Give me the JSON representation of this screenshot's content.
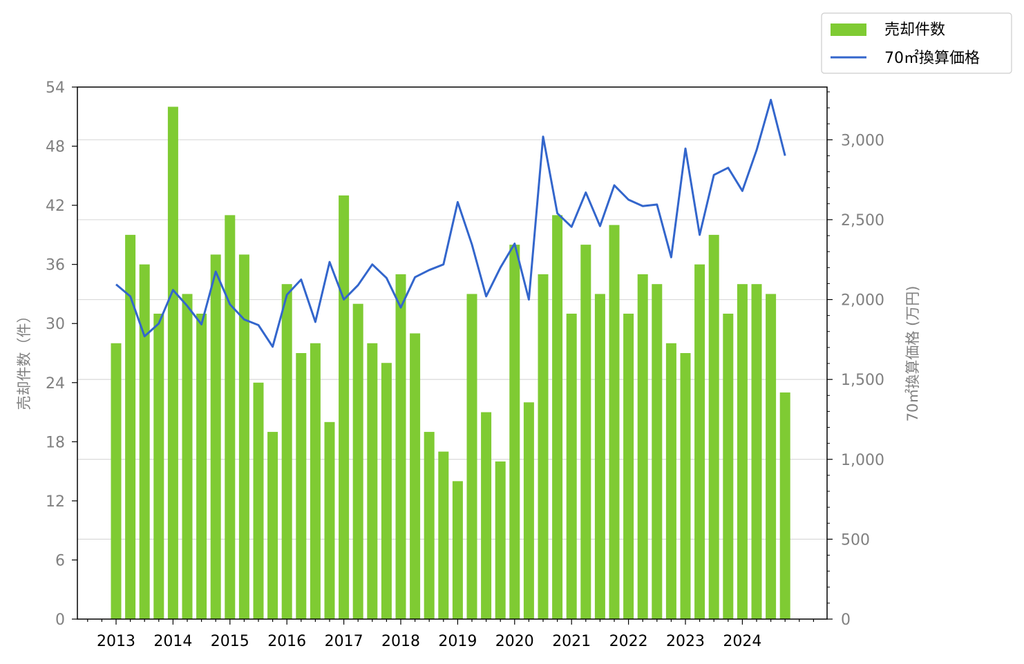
{
  "chart_data": {
    "type": "bar+line",
    "x": [
      "2013-01",
      "2013-04",
      "2013-07",
      "2013-10",
      "2014-01",
      "2014-04",
      "2014-07",
      "2014-10",
      "2015-01",
      "2015-04",
      "2015-07",
      "2015-10",
      "2016-01",
      "2016-04",
      "2016-07",
      "2016-10",
      "2017-01",
      "2017-04",
      "2017-07",
      "2017-10",
      "2018-01",
      "2018-04",
      "2018-07",
      "2018-10",
      "2019-01",
      "2019-04",
      "2019-07",
      "2019-10",
      "2020-01",
      "2020-04",
      "2020-07",
      "2020-10",
      "2021-01",
      "2021-04",
      "2021-07",
      "2021-10",
      "2022-01",
      "2022-04",
      "2022-07",
      "2022-10",
      "2023-01",
      "2023-04",
      "2023-07",
      "2023-10",
      "2024-01",
      "2024-04",
      "2024-07",
      "2024-10"
    ],
    "x_ticks": [
      "2013",
      "2014",
      "2015",
      "2016",
      "2017",
      "2018",
      "2019",
      "2020",
      "2021",
      "2022",
      "2023",
      "2024"
    ],
    "series": [
      {
        "name": "売却件数",
        "type": "bar",
        "axis": "left",
        "color": "#7fcb33",
        "values": [
          28,
          39,
          36,
          31,
          52,
          33,
          31,
          37,
          41,
          37,
          24,
          19,
          34,
          27,
          28,
          20,
          43,
          32,
          28,
          26,
          35,
          29,
          19,
          17,
          14,
          33,
          21,
          16,
          38,
          22,
          35,
          41,
          31,
          38,
          33,
          40,
          31,
          35,
          34,
          28,
          27,
          36,
          39,
          31,
          34,
          34,
          33,
          23
        ]
      },
      {
        "name": "70㎡換算価格",
        "type": "line",
        "axis": "right",
        "color": "#3366cc",
        "values": [
          2095,
          2020,
          1770,
          1850,
          2060,
          1960,
          1845,
          2175,
          1970,
          1875,
          1840,
          1705,
          2030,
          2125,
          1860,
          2235,
          2000,
          2090,
          2220,
          2135,
          1950,
          2140,
          2185,
          2220,
          2610,
          2345,
          2020,
          2200,
          2350,
          2000,
          3020,
          2540,
          2455,
          2670,
          2460,
          2715,
          2625,
          2585,
          2595,
          2265,
          2945,
          2405,
          2780,
          2825,
          2680,
          2935,
          3250,
          2900
        ]
      }
    ],
    "ylabel_left": "売却件数（件）",
    "ylabel_right": "70㎡換算価格 (万円)",
    "ylim_left": [
      0,
      54
    ],
    "ylim_right": [
      0,
      3330
    ],
    "yticks_left": [
      "0",
      "6",
      "12",
      "18",
      "24",
      "30",
      "36",
      "42",
      "48",
      "54"
    ],
    "yticks_right": [
      "0",
      "500",
      "1,000",
      "1,500",
      "2,000",
      "2,500",
      "3,000"
    ],
    "grid": "horizontal-right-axis",
    "legend": "top-right-outside"
  }
}
